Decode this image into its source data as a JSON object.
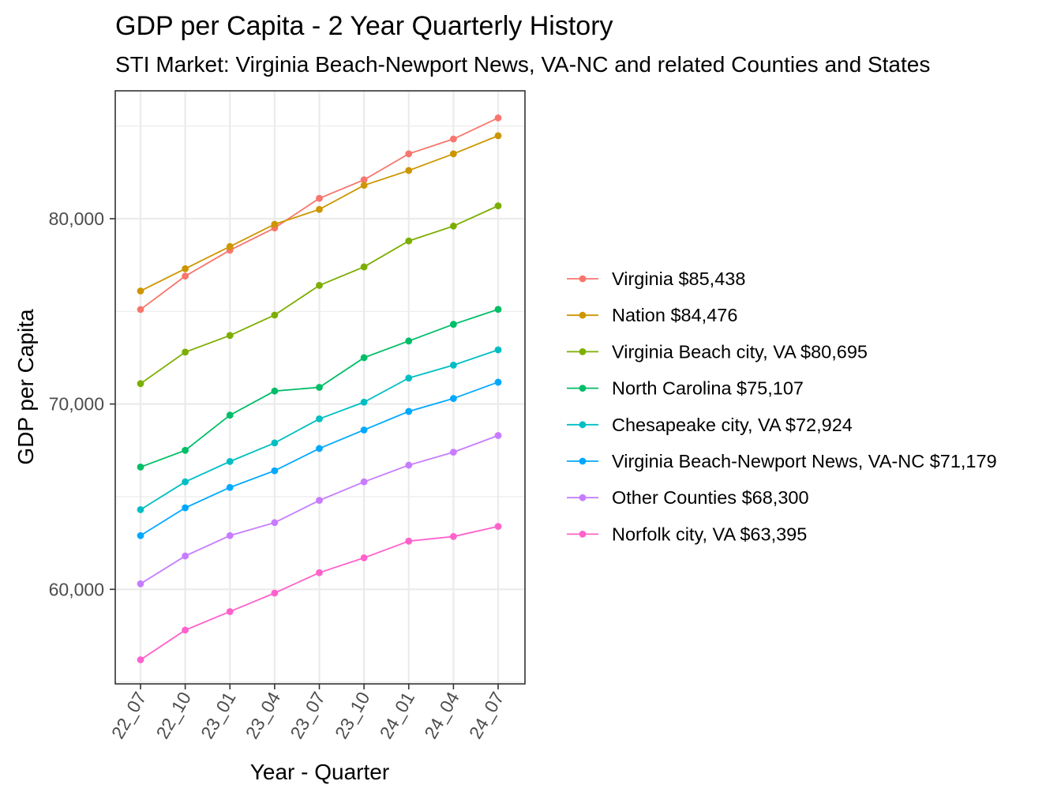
{
  "chart_data": {
    "type": "line",
    "title": "GDP per Capita - 2 Year Quarterly History",
    "subtitle": "STI Market: Virginia Beach-Newport News, VA-NC and related Counties and States",
    "xlabel": "Year - Quarter",
    "ylabel": "GDP per Capita",
    "categories": [
      "22_07",
      "22_10",
      "23_01",
      "23_04",
      "23_07",
      "23_10",
      "24_01",
      "24_04",
      "24_07"
    ],
    "ylim": [
      54900,
      86900
    ],
    "yticks": [
      60000,
      70000,
      80000
    ],
    "ytick_labels": [
      "60,000",
      "70,000",
      "80,000"
    ],
    "grid": true,
    "legend_position": "right",
    "series": [
      {
        "name": "Virginia $85,438",
        "color": "#F8766D",
        "values": [
          75100,
          76900,
          78300,
          79500,
          81100,
          82100,
          83500,
          84300,
          85438
        ]
      },
      {
        "name": "Nation $84,476",
        "color": "#CD9600",
        "values": [
          76100,
          77300,
          78500,
          79700,
          80500,
          81800,
          82600,
          83500,
          84476
        ]
      },
      {
        "name": "Virginia Beach city, VA $80,695",
        "color": "#7CAE00",
        "values": [
          71100,
          72800,
          73700,
          74800,
          76400,
          77400,
          78800,
          79600,
          80695
        ]
      },
      {
        "name": "North Carolina $75,107",
        "color": "#00BE67",
        "values": [
          66600,
          67500,
          69400,
          70700,
          70900,
          72500,
          73400,
          74300,
          75107
        ]
      },
      {
        "name": "Chesapeake city, VA $72,924",
        "color": "#00BFC4",
        "values": [
          64300,
          65800,
          66900,
          67900,
          69200,
          70100,
          71400,
          72100,
          72924
        ]
      },
      {
        "name": "Virginia Beach-Newport News, VA-NC $71,179",
        "color": "#00A9FF",
        "values": [
          62900,
          64400,
          65500,
          66400,
          67600,
          68600,
          69600,
          70300,
          71179
        ]
      },
      {
        "name": "Other Counties $68,300",
        "color": "#C77CFF",
        "values": [
          60300,
          61800,
          62900,
          63600,
          64800,
          65800,
          66700,
          67400,
          68300
        ]
      },
      {
        "name": "Norfolk city, VA $63,395",
        "color": "#FF61CC",
        "values": [
          56200,
          57800,
          58800,
          59800,
          60900,
          61700,
          62600,
          62850,
          63395
        ]
      }
    ]
  }
}
